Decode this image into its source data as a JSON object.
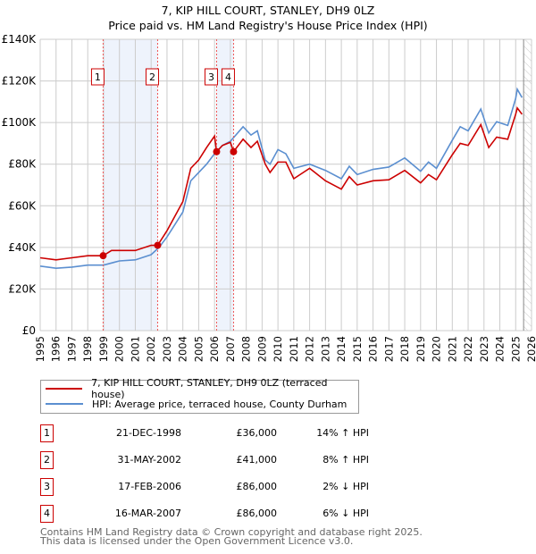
{
  "chart_data": {
    "type": "line",
    "title": "7, KIP HILL COURT, STANLEY, DH9 0LZ",
    "subtitle": "Price paid vs. HM Land Registry's House Price Index (HPI)",
    "xlim": [
      1995,
      2026
    ],
    "ylim": [
      0,
      140000
    ],
    "yticks": [
      "£0",
      "£20K",
      "£40K",
      "£60K",
      "£80K",
      "£100K",
      "£120K",
      "£140K"
    ],
    "xticks": [
      "1995",
      "1996",
      "1997",
      "1998",
      "1999",
      "2000",
      "2001",
      "2002",
      "2003",
      "2004",
      "2005",
      "2006",
      "2007",
      "2008",
      "2009",
      "2010",
      "2011",
      "2012",
      "2013",
      "2014",
      "2015",
      "2016",
      "2017",
      "2018",
      "2019",
      "2020",
      "2021",
      "2022",
      "2023",
      "2024",
      "2025",
      "2026"
    ],
    "grid": true,
    "series": [
      {
        "name": "7, KIP HILL COURT, STANLEY, DH9 0LZ (terraced house)",
        "color": "#cc0000",
        "x": [
          1995,
          1996,
          1997,
          1998,
          1998.97,
          1999.5,
          2000,
          2001,
          2002,
          2002.41,
          2003,
          2004,
          2004.5,
          2005,
          2005.5,
          2006,
          2006.13,
          2006.5,
          2007,
          2007.2,
          2007.8,
          2008.3,
          2008.7,
          2009.2,
          2009.5,
          2010,
          2010.5,
          2011,
          2012,
          2013,
          2014,
          2014.5,
          2015,
          2016,
          2017,
          2018,
          2019,
          2019.5,
          2020,
          2021,
          2021.5,
          2022,
          2022.8,
          2023.3,
          2023.8,
          2024.5,
          2025,
          2025.1,
          2025.4
        ],
        "y": [
          35,
          34,
          35,
          36,
          36,
          38.5,
          38.5,
          38.5,
          41,
          41,
          48,
          62,
          78,
          82,
          88,
          93.5,
          86,
          89,
          90.5,
          86,
          92,
          88,
          91,
          80,
          76,
          81,
          81,
          73,
          78,
          72,
          68,
          74,
          70,
          72,
          72.5,
          77,
          71,
          75,
          72.5,
          84.5,
          90,
          89,
          99,
          88,
          93,
          92,
          104,
          107,
          104
        ]
      },
      {
        "name": "HPI: Average price, terraced house, County Durham",
        "color": "#5b8fd0",
        "x": [
          1995,
          1996,
          1997,
          1998,
          1999,
          2000,
          2001,
          2002,
          2002.5,
          2003,
          2004,
          2004.5,
          2005,
          2005.5,
          2006,
          2006.5,
          2007,
          2007.8,
          2008.3,
          2008.7,
          2009.2,
          2009.5,
          2010,
          2010.5,
          2011,
          2012,
          2013,
          2014,
          2014.5,
          2015,
          2016,
          2017,
          2018,
          2019,
          2019.5,
          2020,
          2021,
          2021.5,
          2022,
          2022.8,
          2023.3,
          2023.8,
          2024.5,
          2025,
          2025.1,
          2025.4
        ],
        "y": [
          31,
          30,
          30.5,
          31.5,
          31.5,
          33.5,
          34,
          36.5,
          40,
          45,
          57,
          72,
          76,
          80,
          85,
          89,
          91,
          98,
          94,
          96,
          82,
          80,
          87,
          85,
          78,
          80,
          77,
          73,
          79,
          75,
          77.5,
          78.6,
          83,
          76.6,
          81,
          78,
          91.5,
          98,
          96,
          106.5,
          95,
          100.4,
          98.6,
          111.6,
          116,
          112
        ]
      }
    ],
    "sales": [
      {
        "label": "1",
        "x": 1998.97,
        "y": 36
      },
      {
        "label": "2",
        "x": 2002.41,
        "y": 41
      },
      {
        "label": "3",
        "x": 2006.13,
        "y": 86
      },
      {
        "label": "4",
        "x": 2007.2,
        "y": 86
      }
    ],
    "shaded": [
      [
        1998.97,
        2002.41
      ],
      [
        2006.13,
        2007.2
      ]
    ],
    "forecast_start": 2025.5
  },
  "table": [
    {
      "num": "1",
      "date": "21-DEC-1998",
      "price": "£36,000",
      "hpi": "14% ↑ HPI"
    },
    {
      "num": "2",
      "date": "31-MAY-2002",
      "price": "£41,000",
      "hpi": "8% ↑ HPI"
    },
    {
      "num": "3",
      "date": "17-FEB-2006",
      "price": "£86,000",
      "hpi": "2% ↓ HPI"
    },
    {
      "num": "4",
      "date": "16-MAR-2007",
      "price": "£86,000",
      "hpi": "6% ↓ HPI"
    }
  ],
  "footer": {
    "line1": "Contains HM Land Registry data © Crown copyright and database right 2025.",
    "line2": "This data is licensed under the Open Government Licence v3.0."
  }
}
